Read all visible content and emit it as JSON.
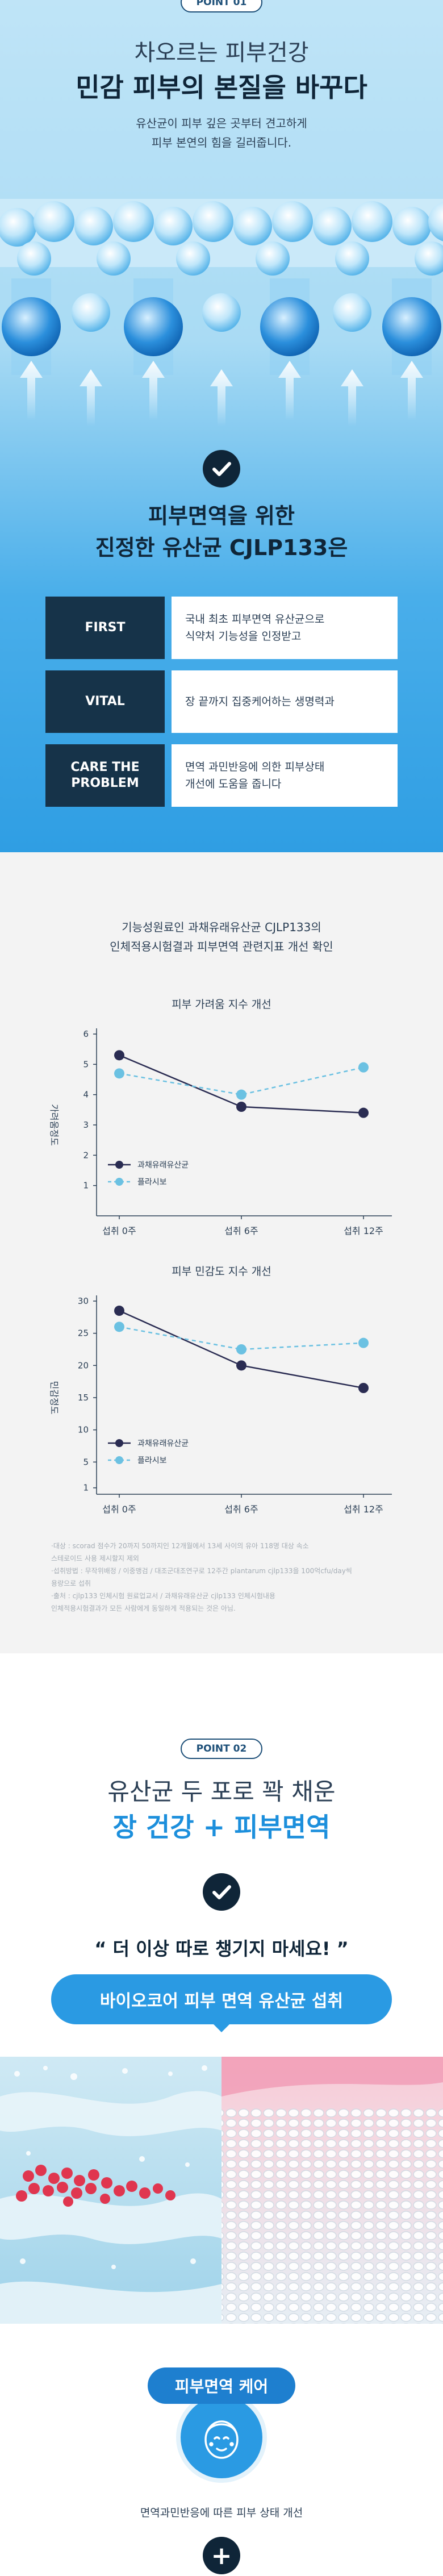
{
  "point1": {
    "badge": "POINT 01",
    "headline_light": "차오르는 피부건강",
    "headline_bold": "민감 피부의 본질을 바꾸다",
    "desc_line1": "유산균이 피부 깊은 곳부터 견고하게",
    "desc_line2": "피부 본연의 힘을 길러줍니다.",
    "sub_line1": "피부면역을 위한",
    "sub_line2": "진정한 유산균 CJLP133은",
    "rows": [
      {
        "label": "FIRST",
        "text1": "국내 최초 피부면역 유산균으로",
        "text2": "식약처 기능성을 인정받고"
      },
      {
        "label": "VITAL",
        "text1": "장 끝까지 집중케어하는 생명력과",
        "text2": ""
      },
      {
        "label": "CARE THE PROBLEM",
        "text1": "면역 과민반응에 의한 피부상태",
        "text2": "개선에 도움을 줍니다"
      }
    ]
  },
  "study": {
    "intro_line1": "기능성원료인 과채유래유산균 CJLP133의",
    "intro_line2": "인체적용시험결과 피부면역 관련지표 개선 확인",
    "footnote_lines": [
      "·대상 : scorad 점수가 20까지 50까지인 12개월에서 13세 사이의 유아 118명 대상 속소",
      "  스테로이드 사용 제시할지 제외",
      "·섭취방법 : 무작위배정 / 이중맹검 / 대조군대조연구로 12주간 plantarum cjlp133을 100억cfu/day씩",
      "  용량으로 섭취",
      "·출처 : cjlp133 인체시험 원료업교서 / 과채유래유산균 cjlp133 인체시험내용",
      "  인체적용시험결과가 모든 사람에게 동일하게 적용되는 것은 아님."
    ]
  },
  "chart_data": [
    {
      "type": "line",
      "title": "피부 가려움 지수 개선",
      "ylabel": "가려움정도",
      "categories": [
        "섭취 0주",
        "섭취 6주",
        "섭취 12주"
      ],
      "ylim": [
        0,
        6
      ],
      "yticks": [
        1,
        2,
        3,
        4,
        5,
        6
      ],
      "series": [
        {
          "name": "과채유래유산균",
          "values": [
            5.3,
            3.6,
            3.4
          ],
          "color": "#2a2c52",
          "dashed": false
        },
        {
          "name": "플라시보",
          "values": [
            4.7,
            4.0,
            4.9
          ],
          "color": "#6bc1e2",
          "dashed": true
        }
      ]
    },
    {
      "type": "line",
      "title": "피부 민감도 지수 개선",
      "ylabel": "민감정도",
      "categories": [
        "섭취 0주",
        "섭취 6주",
        "섭취 12주"
      ],
      "ylim": [
        0,
        30
      ],
      "yticks": [
        1,
        5,
        10,
        15,
        20,
        25,
        30
      ],
      "series": [
        {
          "name": "과채유래유산균",
          "values": [
            28.5,
            20.0,
            16.5
          ],
          "color": "#2a2c52",
          "dashed": false
        },
        {
          "name": "플라시보",
          "values": [
            26.0,
            22.5,
            23.5
          ],
          "color": "#6bc1e2",
          "dashed": true
        }
      ]
    }
  ],
  "point2": {
    "badge": "POINT 02",
    "headline_light": "유산균 두 포로 꽉 채운",
    "headline_bold": "장 건강 + 피부면역",
    "quote": "“ 더 이상 따로 챙기지 마세요! ”",
    "pill": "바이오코어 피부 면역 유산균 섭취",
    "care_label": "피부면역 케어",
    "care_desc": "면역과민반응에 따른 피부 상태 개선",
    "plus": "+"
  }
}
